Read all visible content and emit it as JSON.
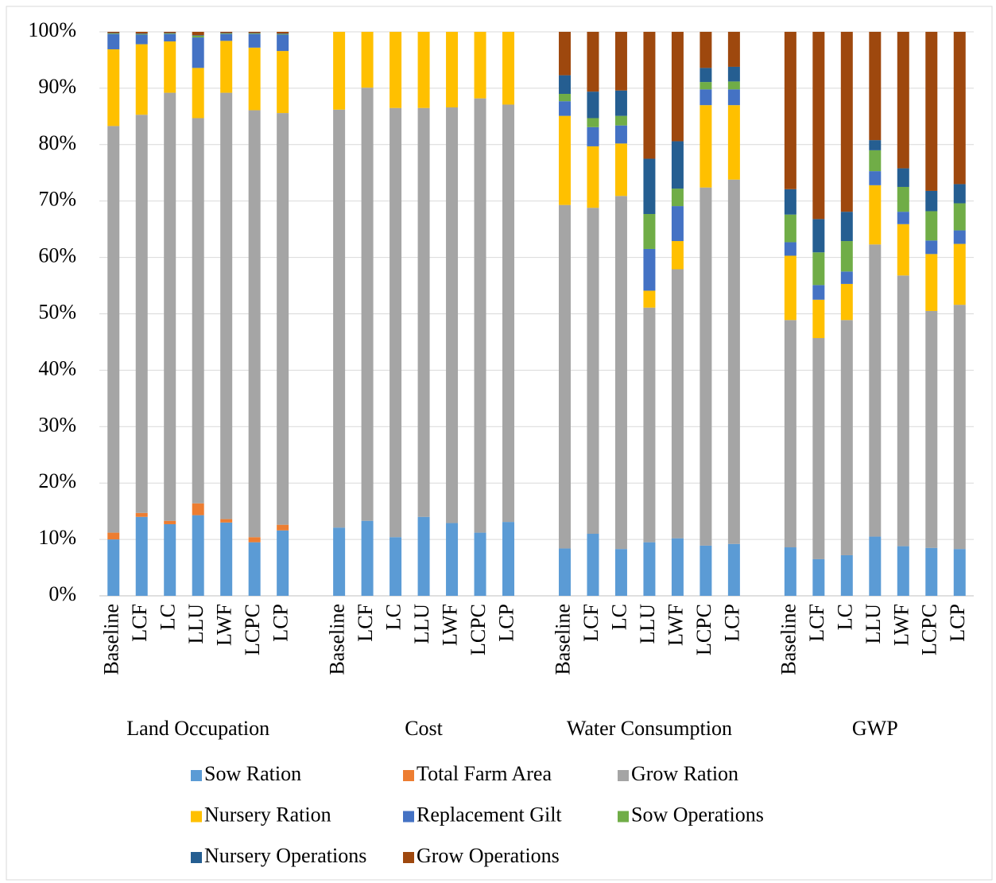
{
  "chart_data": {
    "type": "stacked_bar",
    "groups": [
      "Land Occupation",
      "Cost",
      "Water Consumption",
      "GWP"
    ],
    "categories": [
      "Baseline",
      "LCF",
      "LC",
      "LLU",
      "LWF",
      "LCPC",
      "LCP",
      "Baseline",
      "LCF",
      "LC",
      "LLU",
      "LWF",
      "LCPC",
      "LCP",
      "Baseline",
      "LCF",
      "LC",
      "LLU",
      "LWF",
      "LCPC",
      "LCP",
      "Baseline",
      "LCF",
      "LC",
      "LLU",
      "LWF",
      "LCPC",
      "LCP"
    ],
    "series": [
      {
        "name": "Sow Ration",
        "color": "#5b9bd5",
        "values": [
          10.0,
          14.0,
          12.7,
          14.3,
          13.0,
          9.5,
          11.6,
          12.1,
          13.3,
          10.4,
          14.0,
          12.9,
          11.2,
          13.1,
          8.4,
          11.0,
          8.3,
          9.5,
          10.2,
          8.9,
          9.2,
          8.6,
          6.5,
          7.2,
          10.5,
          8.8,
          8.5,
          8.3
        ]
      },
      {
        "name": "Total Farm Area",
        "color": "#ed7d31",
        "values": [
          1.2,
          0.7,
          0.6,
          2.1,
          0.6,
          0.9,
          1.0,
          0,
          0,
          0,
          0,
          0,
          0,
          0,
          0,
          0,
          0,
          0,
          0,
          0,
          0,
          0,
          0,
          0,
          0,
          0,
          0,
          0
        ]
      },
      {
        "name": "Grow Ration",
        "color": "#a5a5a5",
        "values": [
          72.1,
          70.6,
          75.9,
          68.3,
          75.6,
          75.7,
          73.0,
          74.1,
          76.8,
          76.1,
          72.5,
          73.7,
          77.0,
          74.0,
          60.9,
          57.8,
          62.6,
          41.6,
          47.7,
          63.5,
          64.6,
          40.3,
          39.2,
          41.7,
          51.8,
          48.0,
          42.0,
          43.3
        ]
      },
      {
        "name": "Nursery Ration",
        "color": "#ffc000",
        "values": [
          13.6,
          12.5,
          9.1,
          8.9,
          9.2,
          11.1,
          11.0,
          13.8,
          9.9,
          13.5,
          13.5,
          13.4,
          11.8,
          12.9,
          15.8,
          10.9,
          9.3,
          3.0,
          5.0,
          14.6,
          13.2,
          11.4,
          6.8,
          6.4,
          10.5,
          9.1,
          10.1,
          10.8
        ]
      },
      {
        "name": "Replacement Gilt",
        "color": "#4472c4",
        "values": [
          2.7,
          1.7,
          1.3,
          5.4,
          1.2,
          2.4,
          2.9,
          0,
          0,
          0,
          0,
          0,
          0,
          0,
          2.6,
          3.4,
          3.2,
          7.4,
          6.2,
          2.8,
          2.8,
          2.4,
          2.6,
          2.2,
          2.5,
          2.2,
          2.4,
          2.4
        ]
      },
      {
        "name": "Sow Operations",
        "color": "#70ad47",
        "values": [
          0.1,
          0.1,
          0.1,
          0.3,
          0.1,
          0.1,
          0.1,
          0,
          0,
          0,
          0,
          0,
          0,
          0,
          1.3,
          1.6,
          1.7,
          6.2,
          3.1,
          1.3,
          1.4,
          4.9,
          5.8,
          5.4,
          3.7,
          4.4,
          5.2,
          4.8
        ]
      },
      {
        "name": "Nursery Operations",
        "color": "#255e91",
        "values": [
          0.1,
          0.1,
          0.1,
          0.1,
          0.1,
          0.1,
          0.1,
          0,
          0,
          0,
          0,
          0,
          0,
          0,
          3.3,
          4.7,
          4.5,
          9.8,
          8.4,
          2.5,
          2.6,
          4.5,
          5.9,
          5.2,
          1.8,
          3.3,
          3.6,
          3.4
        ]
      },
      {
        "name": "Grow Operations",
        "color": "#9e480e",
        "values": [
          0.2,
          0.3,
          0.2,
          0.6,
          0.2,
          0.2,
          0.3,
          0,
          0,
          0,
          0,
          0,
          0,
          0,
          7.7,
          10.6,
          10.4,
          22.5,
          19.4,
          6.4,
          6.2,
          27.9,
          33.2,
          31.9,
          19.2,
          24.2,
          28.2,
          27.0
        ]
      }
    ],
    "ylim": [
      0,
      100
    ],
    "yticks": [
      {
        "value": 0,
        "label": "0%"
      },
      {
        "value": 10,
        "label": "10%"
      },
      {
        "value": 20,
        "label": "20%"
      },
      {
        "value": 30,
        "label": "30%"
      },
      {
        "value": 40,
        "label": "40%"
      },
      {
        "value": 50,
        "label": "50%"
      },
      {
        "value": 60,
        "label": "60%"
      },
      {
        "value": 70,
        "label": "70%"
      },
      {
        "value": 80,
        "label": "80%"
      },
      {
        "value": 90,
        "label": "90%"
      },
      {
        "value": 100,
        "label": "100%"
      }
    ],
    "grid": true,
    "legend": "bottom"
  }
}
